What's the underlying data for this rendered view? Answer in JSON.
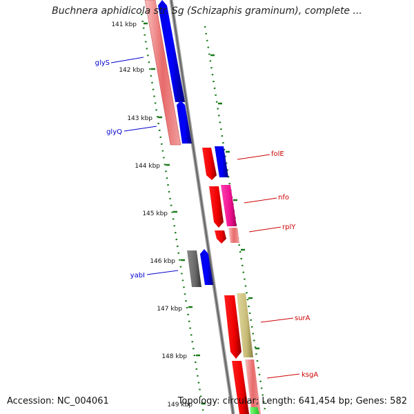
{
  "title": "Buchnera aphidicola str. Sg (Schizaphis graminum), complete ...",
  "ticks": [
    "141 kbp",
    "142 kbp",
    "143 kbp",
    "144 kbp",
    "145 kbp",
    "146 kbp",
    "147 kbp",
    "148 kbp",
    "149 kbp"
  ],
  "genes": {
    "glyS": {
      "label": "glyS",
      "color": "#0000cc"
    },
    "glyQ": {
      "label": "glyQ",
      "color": "#0000cc"
    },
    "folE": {
      "label": "folE",
      "color": "#cc0000"
    },
    "nfo": {
      "label": "nfo",
      "color": "#cc0000"
    },
    "rplY": {
      "label": "rplY",
      "color": "#cc0000"
    },
    "yabI": {
      "label": "yabI",
      "color": "#0000cc"
    },
    "surA": {
      "label": "surA",
      "color": "#cc0000"
    },
    "ksgA": {
      "label": "ksgA",
      "color": "#cc0000"
    }
  },
  "footer": {
    "accession": "Accession: NC_004061",
    "topology": "Topology: circular; Length: 641,454 bp; Genes: 582"
  },
  "colors": {
    "backbone": "#808080",
    "tick_dots": "#1a7a1a",
    "forward_label": "#cc0000",
    "reverse_label": "#0000cc"
  }
}
